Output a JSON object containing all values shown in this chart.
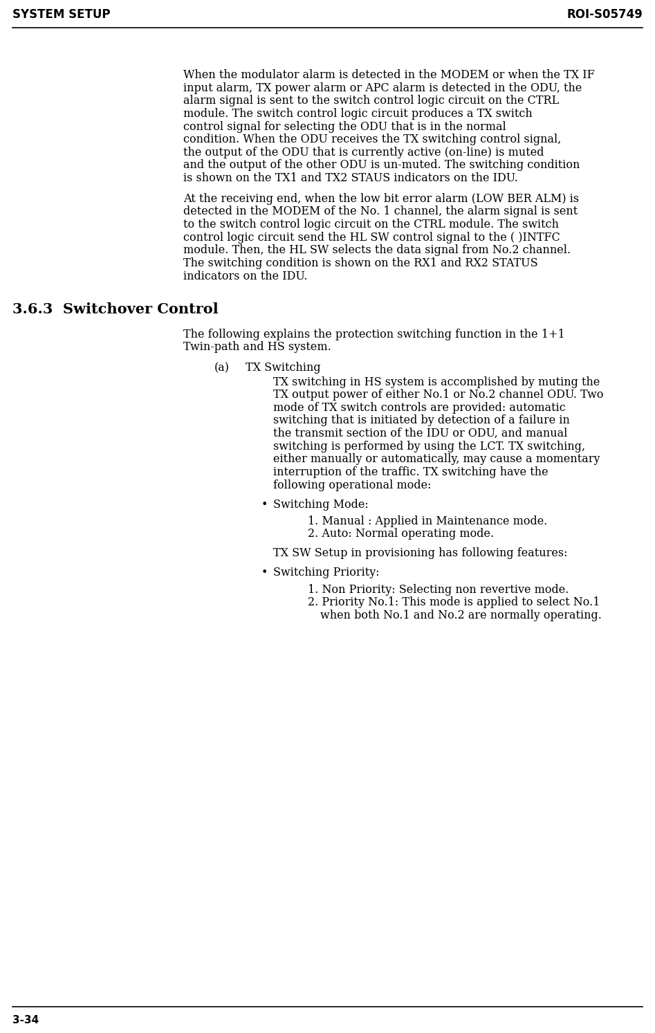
{
  "header_left": "SYSTEM SETUP",
  "header_right": "ROI-S05749",
  "footer_left": "3-34",
  "header_fontsize": 12,
  "footer_fontsize": 11,
  "body_fontsize": 11.5,
  "section_fontsize": 15,
  "background_color": "#ffffff",
  "text_color": "#000000",
  "para1": "When the modulator alarm is detected in the MODEM or when the TX IF input alarm, TX power alarm or APC alarm is detected in the ODU, the alarm signal is sent to the switch control logic circuit on the CTRL module. The switch control logic circuit produces a TX switch control signal for selecting the ODU that is in the normal condition.  When the ODU receives the TX switching control signal, the output of the ODU that is currently active (on-line) is muted and the output of the other ODU is un-muted. The switching condition is shown on the TX1 and TX2 STAUS indicators on the IDU.",
  "para2": "At the receiving end, when the low bit error alarm (LOW BER ALM) is detected in the MODEM of the No. 1 channel, the alarm signal is sent to the switch control logic circuit on the CTRL module. The switch control logic circuit send the HL SW control signal to the ( )INTFC module. Then, the HL SW selects the data signal from No.2 channel. The switching condition is shown on the RX1 and RX2 STATUS indicators on the IDU.",
  "section_title": "3.6.3  Switchover Control",
  "para3": "The following explains the protection switching function in the 1+1 Twin-path and HS system.",
  "item_a_label": "(a)",
  "item_a_title": "TX Switching",
  "para4": "TX switching in HS system is accomplished by muting the TX output power of either No.1 or No.2 channel ODU. Two mode of TX switch controls are provided: automatic switching that is initiated by detection of a failure in the transmit section of the IDU or ODU, and manual switching is performed by using the LCT. TX switching, either manually or automatically, may cause a momentary interruption of the traffic.  TX switching have the following operational mode:",
  "bullet1": "Switching Mode:",
  "numbered1_1": "1. Manual : Applied in Maintenance mode.",
  "numbered1_2": "2. Auto: Normal operating mode.",
  "para5": "TX SW Setup in provisioning has following features:",
  "bullet2": "Switching Priority:",
  "numbered2_1": "1. Non Priority: Selecting non revertive mode.",
  "numbered2_2": "2. Priority No.1: This mode is applied to select No.1",
  "numbered2_2b": "     when both No.1 and No.2 are normally operating."
}
